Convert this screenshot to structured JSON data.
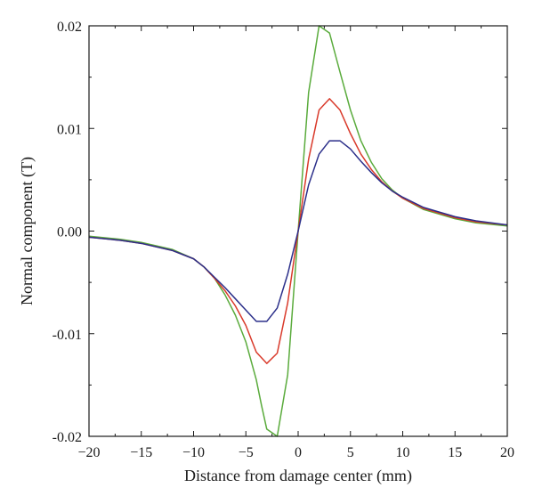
{
  "chart_data": {
    "type": "line",
    "title": "",
    "xlabel": "Distance from damage center (mm)",
    "ylabel": "Normal component (T)",
    "xlim": [
      -20,
      20
    ],
    "ylim": [
      -0.02,
      0.02
    ],
    "x_ticks": [
      -20,
      -15,
      -10,
      -5,
      0,
      5,
      10,
      15,
      20
    ],
    "x_tick_labels": [
      "−20",
      "−15",
      "−10",
      "−5",
      "0",
      "5",
      "10",
      "15",
      "20"
    ],
    "y_ticks": [
      -0.02,
      -0.01,
      0.0,
      0.01,
      0.02
    ],
    "y_tick_labels": [
      "-0.02",
      "-0.01",
      "0.00",
      "0.01",
      "0.02"
    ],
    "grid": false,
    "legend": "none",
    "series": [
      {
        "color": "#5aab3c",
        "points": [
          [
            -20,
            -0.0005
          ],
          [
            -17,
            -0.0008
          ],
          [
            -15,
            -0.0011
          ],
          [
            -12,
            -0.0018
          ],
          [
            -10,
            -0.0027
          ],
          [
            -9,
            -0.0035
          ],
          [
            -8,
            -0.0046
          ],
          [
            -7,
            -0.0062
          ],
          [
            -6,
            -0.0082
          ],
          [
            -5,
            -0.0108
          ],
          [
            -4,
            -0.0145
          ],
          [
            -3.5,
            -0.017
          ],
          [
            -3,
            -0.0193
          ],
          [
            -2,
            -0.02
          ],
          [
            -1,
            -0.014
          ],
          [
            0,
            0.0
          ],
          [
            1,
            0.0135
          ],
          [
            2,
            0.02
          ],
          [
            3,
            0.0193
          ],
          [
            4,
            0.0155
          ],
          [
            5,
            0.0118
          ],
          [
            6,
            0.0088
          ],
          [
            7,
            0.0067
          ],
          [
            8,
            0.0051
          ],
          [
            9,
            0.004
          ],
          [
            10,
            0.0032
          ],
          [
            12,
            0.0021
          ],
          [
            15,
            0.0012
          ],
          [
            17,
            0.0008
          ],
          [
            20,
            0.0005
          ]
        ]
      },
      {
        "color": "#d93a2b",
        "points": [
          [
            -20,
            -0.0006
          ],
          [
            -17,
            -0.0009
          ],
          [
            -15,
            -0.0012
          ],
          [
            -12,
            -0.0019
          ],
          [
            -10,
            -0.0027
          ],
          [
            -9,
            -0.0035
          ],
          [
            -8,
            -0.0046
          ],
          [
            -7,
            -0.0058
          ],
          [
            -6,
            -0.0073
          ],
          [
            -5,
            -0.0092
          ],
          [
            -4,
            -0.0118
          ],
          [
            -3,
            -0.0129
          ],
          [
            -2,
            -0.0119
          ],
          [
            -1,
            -0.007
          ],
          [
            0,
            0.0
          ],
          [
            1,
            0.007
          ],
          [
            2,
            0.0118
          ],
          [
            3,
            0.0129
          ],
          [
            4,
            0.0118
          ],
          [
            5,
            0.0095
          ],
          [
            6,
            0.0075
          ],
          [
            7,
            0.006
          ],
          [
            8,
            0.0048
          ],
          [
            9,
            0.0039
          ],
          [
            10,
            0.0032
          ],
          [
            12,
            0.0022
          ],
          [
            15,
            0.0013
          ],
          [
            17,
            0.0009
          ],
          [
            20,
            0.0006
          ]
        ]
      },
      {
        "color": "#2b2f8a",
        "points": [
          [
            -20,
            -0.0006
          ],
          [
            -17,
            -0.0009
          ],
          [
            -15,
            -0.0012
          ],
          [
            -12,
            -0.0019
          ],
          [
            -10,
            -0.0027
          ],
          [
            -9,
            -0.0035
          ],
          [
            -8,
            -0.0045
          ],
          [
            -7,
            -0.0055
          ],
          [
            -6,
            -0.0066
          ],
          [
            -5,
            -0.0077
          ],
          [
            -4,
            -0.0088
          ],
          [
            -3,
            -0.0088
          ],
          [
            -2,
            -0.0075
          ],
          [
            -1,
            -0.0042
          ],
          [
            0,
            0.0
          ],
          [
            1,
            0.0045
          ],
          [
            2,
            0.0075
          ],
          [
            3,
            0.0088
          ],
          [
            4,
            0.0088
          ],
          [
            5,
            0.008
          ],
          [
            6,
            0.0068
          ],
          [
            7,
            0.0057
          ],
          [
            8,
            0.0047
          ],
          [
            9,
            0.0039
          ],
          [
            10,
            0.0033
          ],
          [
            12,
            0.0023
          ],
          [
            15,
            0.0014
          ],
          [
            17,
            0.001
          ],
          [
            20,
            0.0006
          ]
        ]
      }
    ]
  }
}
